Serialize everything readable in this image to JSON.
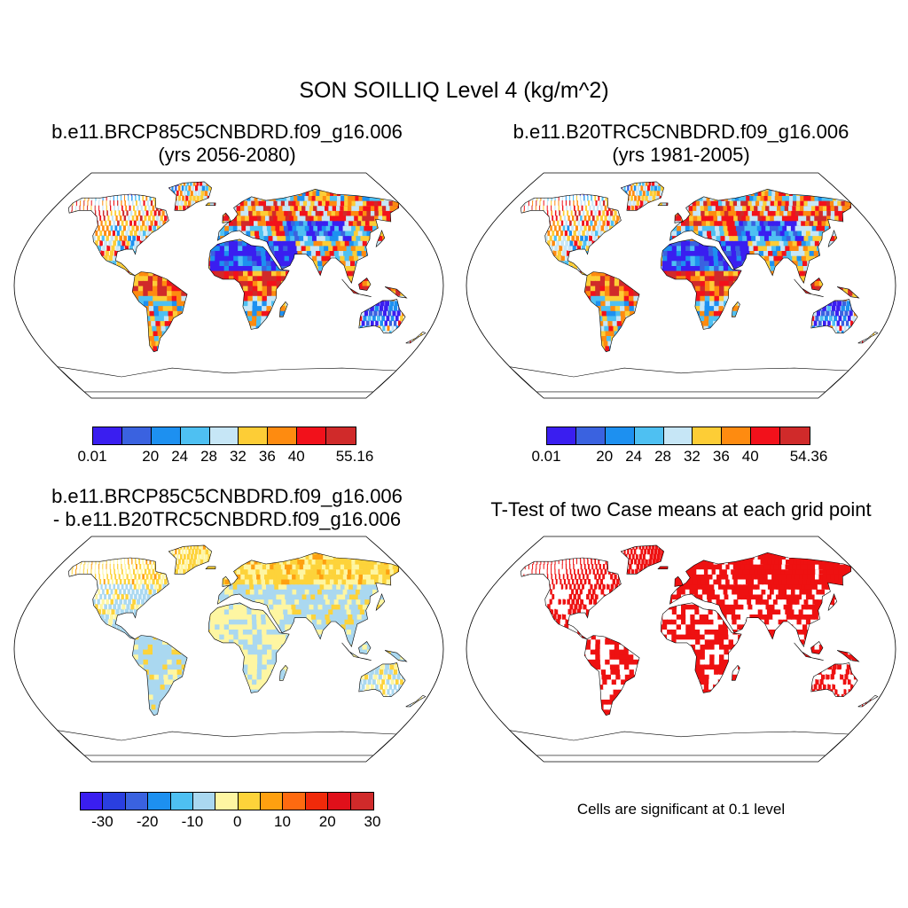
{
  "main_title": "SON SOILLIQ Level 4 (kg/m^2)",
  "panels": [
    {
      "title_line1": "b.e11.BRCP85C5CNBDRD.f09_g16.006",
      "title_line2": "(yrs 2056-2080)",
      "scheme": "absolute"
    },
    {
      "title_line1": "b.e11.B20TRC5CNBDRD.f09_g16.006",
      "title_line2": "(yrs 1981-2005)",
      "scheme": "absolute"
    },
    {
      "title_line1": "b.e11.BRCP85C5CNBDRD.f09_g16.006",
      "title_line2": "- b.e11.B20TRC5CNBDRD.f09_g16.006",
      "scheme": "difference"
    },
    {
      "title_line1": "T-Test of two Case means at each grid point",
      "title_line2": "",
      "scheme": "significance"
    }
  ],
  "colorbars": {
    "abs1": {
      "colors": [
        "#3a1ef0",
        "#3a62e0",
        "#1d90f0",
        "#4ec0f2",
        "#c6e6f6",
        "#fdcd36",
        "#fe8b10",
        "#f2111b",
        "#d02a2a"
      ],
      "labels": [
        "0.01",
        "20",
        "24",
        "28",
        "32",
        "36",
        "40",
        "55.16"
      ]
    },
    "abs2": {
      "colors": [
        "#3a1ef0",
        "#3a62e0",
        "#1d90f0",
        "#4ec0f2",
        "#c6e6f6",
        "#fdcd36",
        "#fe8b10",
        "#f2111b",
        "#d02a2a"
      ],
      "labels": [
        "0.01",
        "20",
        "24",
        "28",
        "32",
        "36",
        "40",
        "54.36"
      ]
    },
    "diff": {
      "colors": [
        "#3a1ef0",
        "#2a3fe0",
        "#3a62e0",
        "#1d90f0",
        "#4ec0f2",
        "#aad8f0",
        "#fef6a2",
        "#fdd33a",
        "#fea010",
        "#fe6a10",
        "#f02a0a",
        "#e0101a",
        "#d02a2a"
      ],
      "labels": [
        "-30",
        "-20",
        "-10",
        "0",
        "10",
        "20",
        "30"
      ]
    }
  },
  "significance_note": "Cells are significant at 0.1 level",
  "significance_color": "#ee1111"
}
